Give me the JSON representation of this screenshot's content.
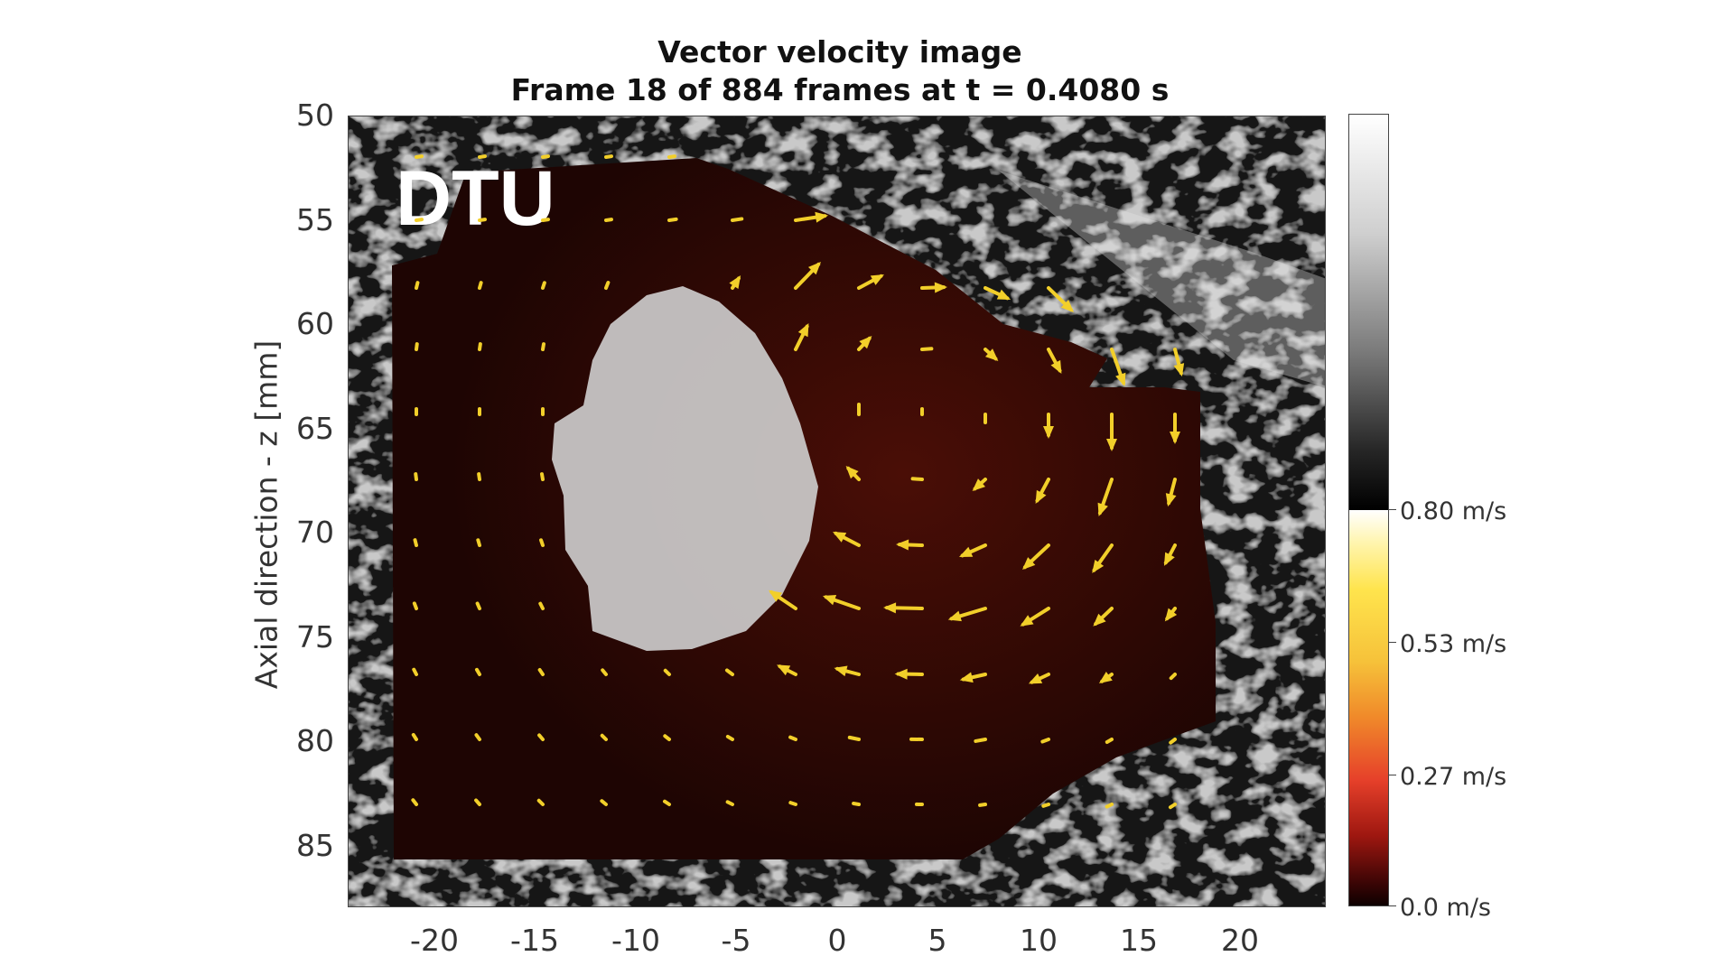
{
  "title": {
    "line1": "Vector velocity image",
    "line2": "Frame 18 of 884 frames at t = 0.4080 s"
  },
  "watermark": "DTU",
  "y_axis": {
    "label": "Axial direction - z [mm]",
    "ticks": [
      "50",
      "55",
      "60",
      "65",
      "70",
      "75",
      "80",
      "85"
    ]
  },
  "x_axis": {
    "ticks": [
      "-20",
      "-15",
      "-10",
      "-5",
      "0",
      "5",
      "10",
      "15",
      "20"
    ]
  },
  "colorbar": {
    "ticks": [
      "0.80 m/s",
      "0.53 m/s",
      "0.27 m/s",
      "0.0 m/s"
    ]
  },
  "colors": {
    "vector": "#f2cf2a",
    "flow_region": "#2a0704",
    "tissue_light": "#cfcfcf",
    "tissue_dark": "#2a2a2a"
  }
}
